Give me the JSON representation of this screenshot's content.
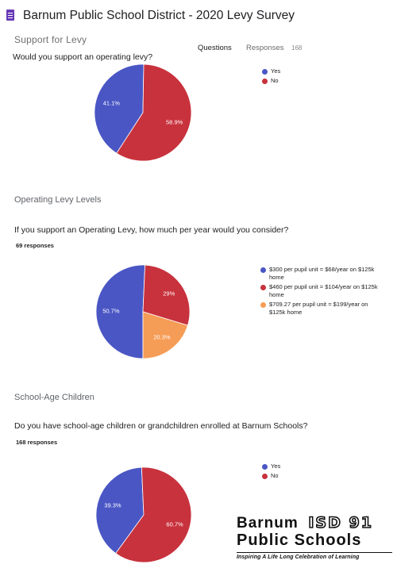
{
  "header": {
    "title": "Barnum Public School District - 2020 Levy Survey",
    "tab_questions": "Questions",
    "tab_responses": "Responses",
    "responses_count": "168"
  },
  "colors": {
    "blue": "#4a56c4",
    "red": "#c8323d",
    "orange": "#f59c56"
  },
  "sections": [
    {
      "section_title": "Support for Levy",
      "question": "Would you support an operating levy?",
      "responses_label": ""
    },
    {
      "section_title": "Operating Levy Levels",
      "question": "If you support an Operating Levy, how much per year would you consider?",
      "responses_label": "69 responses"
    },
    {
      "section_title": "School-Age Children",
      "question": "Do you have school-age children or grandchildren enrolled at Barnum Schools?",
      "responses_label": "168 responses"
    }
  ],
  "chart_data": [
    {
      "type": "pie",
      "title": "Would you support an operating levy?",
      "legend_position": "right",
      "slices": [
        {
          "label": "Yes",
          "value": 41.1,
          "display": "41.1%",
          "color": "#4a56c4"
        },
        {
          "label": "No",
          "value": 58.9,
          "display": "58.9%",
          "color": "#c8323d"
        }
      ]
    },
    {
      "type": "pie",
      "title": "If you support an Operating Levy, how much per year would you consider?",
      "legend_position": "right",
      "slices": [
        {
          "label": "$300 per pupil unit = $68/year on $125k home",
          "value": 50.7,
          "display": "50.7%",
          "color": "#4a56c4"
        },
        {
          "label": "$460 per pupil unit = $104/year on $125k home",
          "value": 29.0,
          "display": "29%",
          "color": "#c8323d"
        },
        {
          "label": "$709.27 per pupil unit = $199/year on $125k home",
          "value": 20.3,
          "display": "20.3%",
          "color": "#f59c56"
        }
      ]
    },
    {
      "type": "pie",
      "title": "Do you have school-age children or grandchildren enrolled at Barnum Schools?",
      "legend_position": "right",
      "slices": [
        {
          "label": "Yes",
          "value": 39.3,
          "display": "39.3%",
          "color": "#4a56c4"
        },
        {
          "label": "No",
          "value": 60.7,
          "display": "60.7%",
          "color": "#c8323d"
        }
      ]
    }
  ],
  "logo": {
    "line1": "Barnum",
    "isd": "ISD 91",
    "line2": "Public Schools",
    "tagline": "Inspiring A Life Long Celebration of Learning"
  }
}
